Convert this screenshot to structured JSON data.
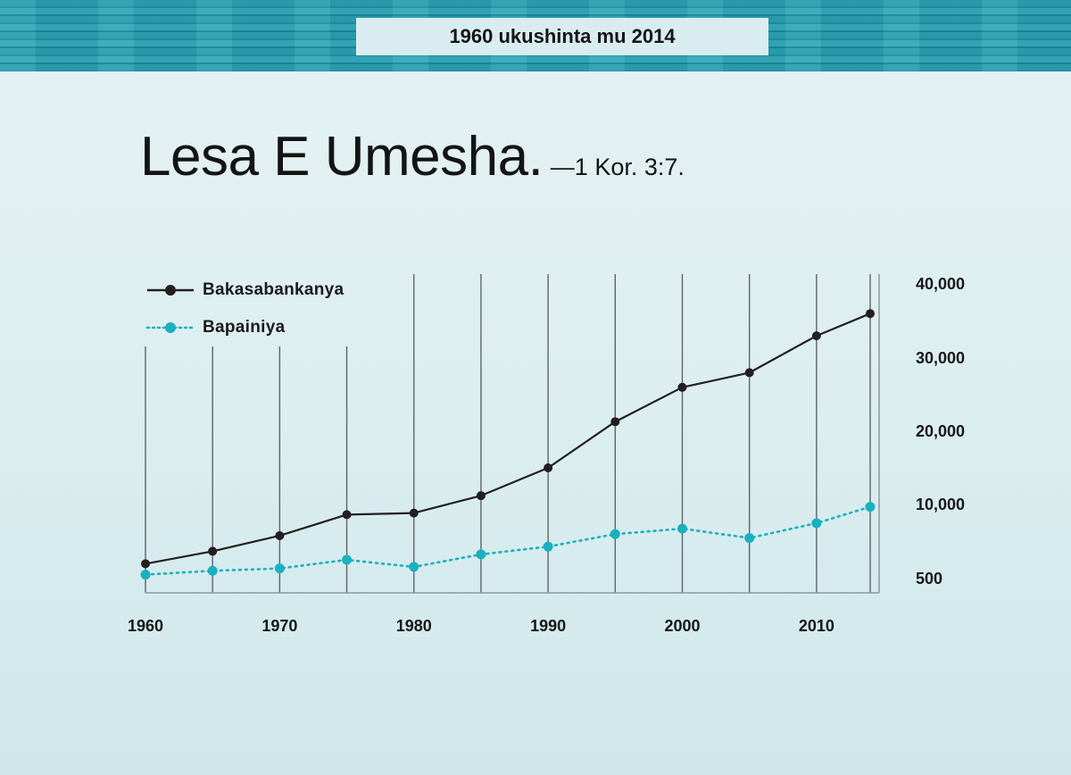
{
  "banner": {
    "period": "1960 ukushinta mu 2014"
  },
  "heading": {
    "main": "Lesa E Umesha.",
    "reference": "—1 Kor. 3:7."
  },
  "colors": {
    "publishers": "#231f20",
    "pioneers": "#1ab0bf",
    "band": "#2a9fb1"
  },
  "chart_data": {
    "type": "line",
    "title": "",
    "xlabel": "",
    "ylabel": "",
    "x": [
      1960,
      1965,
      1970,
      1975,
      1980,
      1985,
      1990,
      1995,
      2000,
      2005,
      2010,
      2014
    ],
    "x_ticks": [
      "1960",
      "1970",
      "1980",
      "1990",
      "2000",
      "2010"
    ],
    "y_ticks": [
      "40,000",
      "30,000",
      "20,000",
      "10,000",
      "500"
    ],
    "y_tick_values": [
      40000,
      30000,
      20000,
      10000,
      500
    ],
    "ylim": [
      500,
      40000
    ],
    "legend_position": "top-left",
    "grid": "vertical",
    "series": [
      {
        "name": "Bakasabankanya",
        "style": "solid",
        "values": [
          2400,
          4000,
          6000,
          8700,
          8900,
          11200,
          15000,
          21300,
          26000,
          28000,
          33000,
          36000
        ]
      },
      {
        "name": "Bapainiya",
        "style": "dotted",
        "values": [
          1000,
          1500,
          1800,
          2900,
          2000,
          3600,
          4600,
          6200,
          6900,
          5700,
          7600,
          9700
        ]
      }
    ]
  }
}
